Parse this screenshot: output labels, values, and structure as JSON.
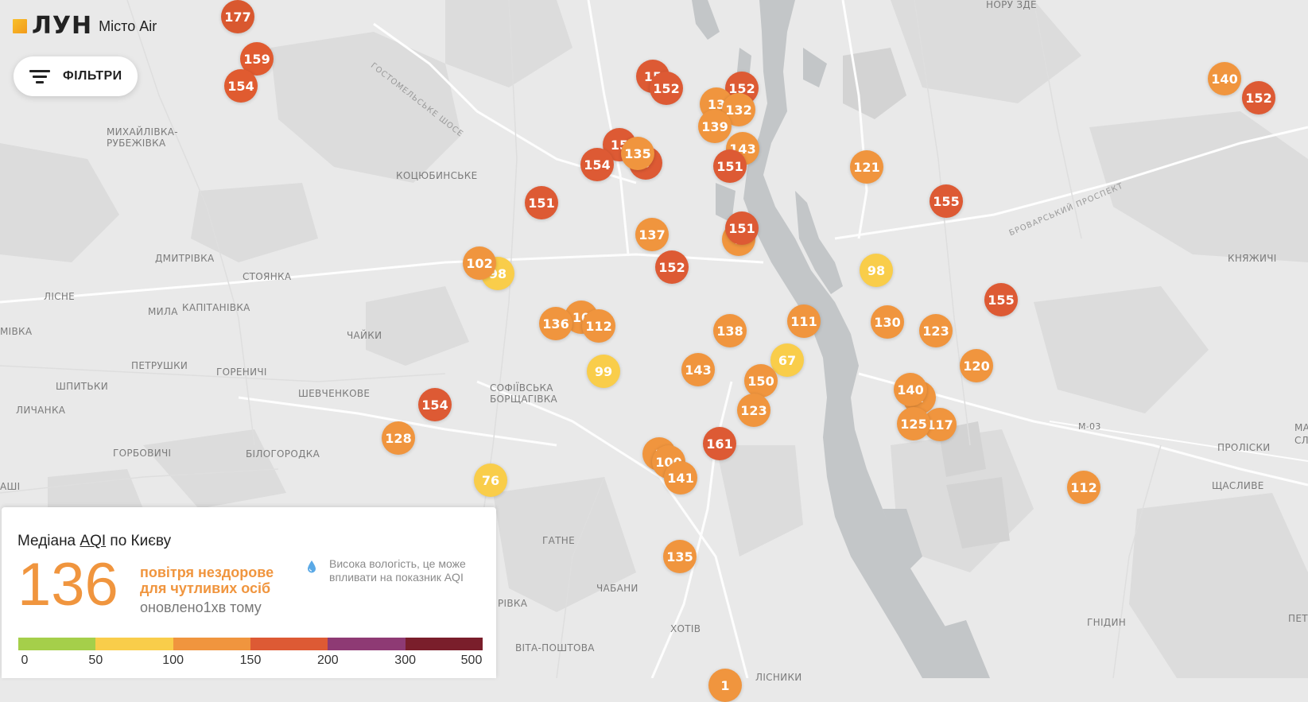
{
  "app": {
    "brand": "ЛУН",
    "product": "Місто Air"
  },
  "filters": {
    "label": "ФІЛЬТРИ"
  },
  "summary": {
    "title_prefix": "Медіана ",
    "title_link": "AQI",
    "title_suffix": " по Києву",
    "median_aqi": "136",
    "status_line1": "повітря нездорове",
    "status_line2": "для чутливих осіб",
    "updated": "оновлено1хв тому",
    "humidity_line1": "Висока вологість, це може",
    "humidity_line2": "впливати на показник AQI"
  },
  "scale": {
    "colors": [
      "#a5cf4a",
      "#f9cd4a",
      "#f0953e",
      "#dd5a34",
      "#8e3a74",
      "#7a1e2b"
    ],
    "ticks": [
      "0",
      "50",
      "100",
      "150",
      "200",
      "300",
      "500"
    ]
  },
  "map": {
    "places": [
      "МИХАЙЛІВКА-",
      "РУБЕЖІВКА",
      "КОЦЮБИНСЬКЕ",
      "ДМИТРІВКА",
      "СТОЯНКА",
      "ЛІСНЕ",
      "МИЛА",
      "КАПІТАНІВКА",
      "ЧАЙКИ",
      "ПЕТРУШКИ",
      "ГОРЕНИЧІ",
      "ШПИТЬКИ",
      "ШЕВЧЕНКОВЕ",
      "СОФІЇВСЬКА",
      "БОРЩАГІВКА",
      "ЛИЧАНКА",
      "ГОРБОВИЧІ",
      "БІЛОГОРОДКА",
      "ГАТНЕ",
      "ЧАБАНИ",
      "ХОТІВ",
      "ВІТА-ПОШТОВА",
      "КНЯЖИЧІ",
      "ПРОЛІСКИ",
      "ЩАСЛИВЕ",
      "ГНІДИН",
      "ЛІСНИКИ",
      "МІВКА",
      "АШІ",
      "ПЕТ",
      "РІВКА",
      "НОРУ ЗДЕ",
      "МА",
      "СЛ",
      "М-03"
    ],
    "roads": [
      "ГОСТОМЕЛЬСЬКЕ ШОСЕ",
      "БРОВАРСЬКИЙ ПРОСПЕКТ"
    ],
    "stations": [
      "177",
      "159",
      "154",
      "15",
      "152",
      "152",
      "13",
      "132",
      "139",
      "143",
      "151",
      "15",
      "135",
      "154",
      "3",
      "121",
      "140",
      "152",
      "151",
      "155",
      "151",
      "137",
      "1",
      "152",
      "102",
      "98",
      "98",
      "155",
      "136",
      "10",
      "112",
      "138",
      "111",
      "130",
      "123",
      "99",
      "143",
      "67",
      "150",
      "120",
      "140",
      "1",
      "123",
      "154",
      "125",
      "117",
      "161",
      "128",
      "1",
      "100",
      "141",
      "76",
      "112",
      "135",
      "1"
    ]
  }
}
